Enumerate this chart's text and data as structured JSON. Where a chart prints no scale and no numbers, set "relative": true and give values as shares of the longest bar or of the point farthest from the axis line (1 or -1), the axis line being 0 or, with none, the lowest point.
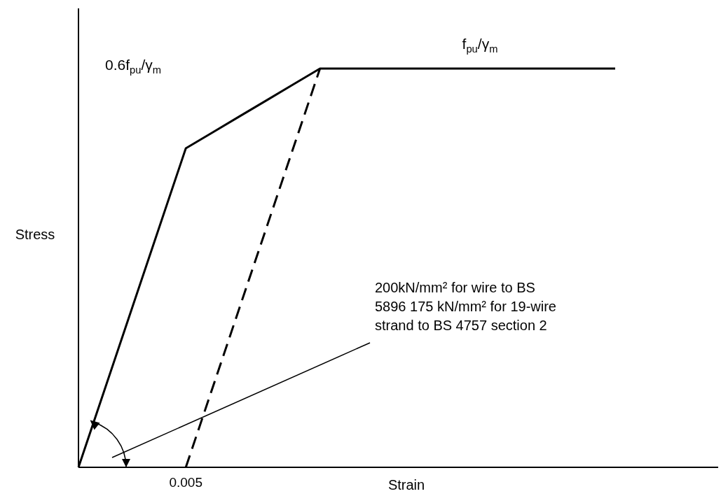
{
  "chart_data": {
    "type": "line",
    "relative": true,
    "xlabel": "Strain",
    "ylabel": "Stress",
    "categories": [
      null,
      null,
      null,
      null,
      null,
      null,
      null,
      null,
      null,
      null,
      null,
      null,
      null,
      null,
      null,
      null,
      null,
      null,
      null,
      null,
      null
    ],
    "series": [
      {
        "color": "#000000",
        "values": [
          0,
          0.2,
          0.4,
          0.6,
          0.8,
          0.84,
          0.88,
          0.92,
          0.96,
          1,
          1,
          1,
          1,
          1,
          1,
          1,
          1,
          1,
          1,
          1,
          1
        ],
        "line_style": "solid"
      },
      {
        "color": "#000000",
        "values": [
          null,
          null,
          null,
          null,
          0,
          0.2,
          0.4,
          0.6,
          0.8,
          1,
          null,
          null,
          null,
          null,
          null,
          null,
          null,
          null,
          null,
          null,
          null
        ],
        "line_style": "dashed"
      }
    ],
    "annotations": [
      "0.6f$_{pu}$/γ$_{m}$",
      "f$_{pu}$/γ$_{m}$",
      "200kN/mm² for wire to BS 5896 175 kN/mm² for 19-wire strand to BS 4757 section 2",
      "0.005"
    ],
    "marker": "none"
  }
}
